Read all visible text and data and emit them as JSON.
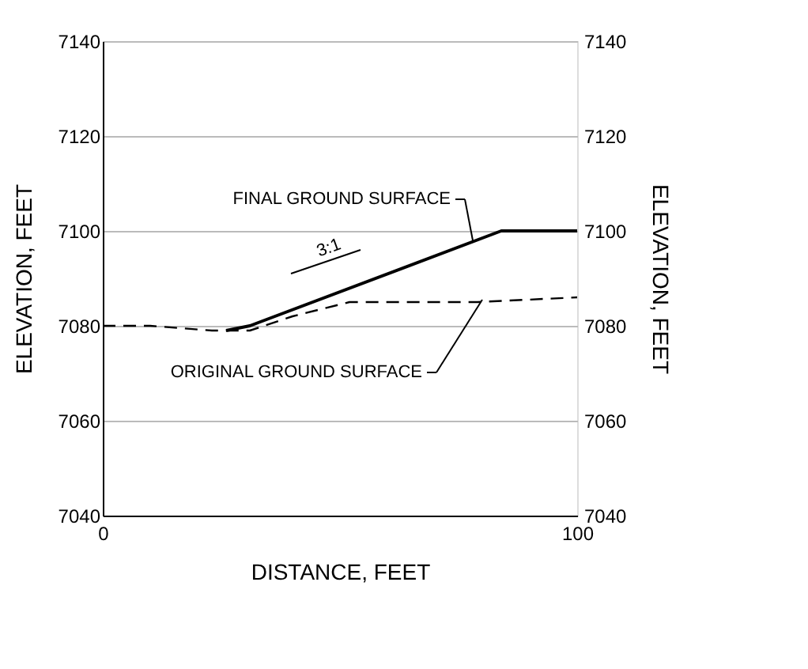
{
  "chart_data": {
    "type": "line",
    "xlabel": "DISTANCE,  FEET",
    "ylabel": "ELEVATION,  FEET",
    "y2label": "ELEVATION,  FEET",
    "xlim": [
      0,
      100
    ],
    "xticks": [
      0,
      100
    ],
    "ylim": [
      7040,
      7140
    ],
    "yticks": [
      7040,
      7060,
      7080,
      7100,
      7120,
      7140
    ],
    "y2lim": [
      7040,
      7140
    ],
    "y2ticks": [
      7040,
      7060,
      7080,
      7100,
      7120,
      7140
    ],
    "grid": "y",
    "legend": false,
    "series": [
      {
        "color": "#000000",
        "line_style": "solid",
        "x": [
          26,
          31,
          84,
          100
        ],
        "values": [
          7079,
          7080,
          7100,
          7100
        ]
      },
      {
        "color": "#000000",
        "line_style": "dashed",
        "x": [
          0,
          10,
          23,
          31,
          40,
          52,
          65,
          79,
          100
        ],
        "values": [
          7080,
          7080,
          7079,
          7079,
          7082,
          7085,
          7085,
          7085,
          7086
        ]
      }
    ],
    "annotations": [
      {
        "text": "FINAL  GROUND  SURFACE",
        "x": 78,
        "y": 7098
      },
      {
        "text": "ORIGINAL  GROUND  SURFACE",
        "x": 80,
        "y": 7085.5
      },
      {
        "text": "3:1",
        "x": 55,
        "y": 7089
      }
    ]
  }
}
